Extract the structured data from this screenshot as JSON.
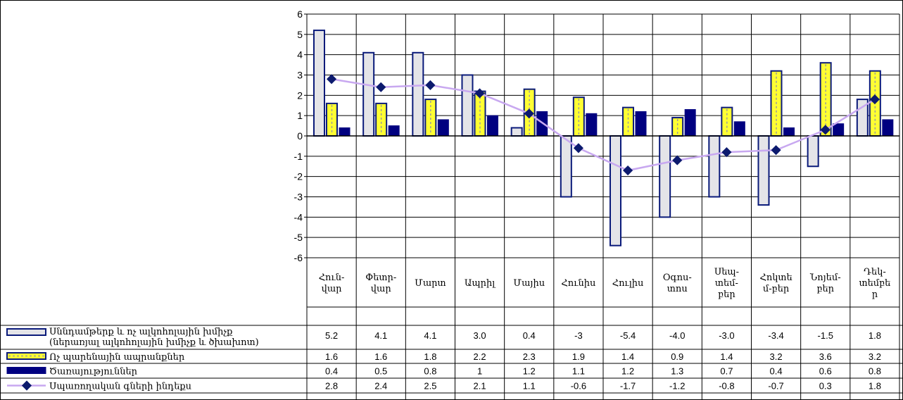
{
  "chart_data": {
    "type": "bar",
    "categories": [
      [
        "Հուն-",
        "վար"
      ],
      [
        "Փետր-",
        "վար"
      ],
      [
        "Մարտ"
      ],
      [
        "Ապրիլ"
      ],
      [
        "Մայիս"
      ],
      [
        "Հունիս"
      ],
      [
        "Հուլիս"
      ],
      [
        "Օգոս-",
        "տոս"
      ],
      [
        "Սեպ-",
        "տեմ-",
        "բեր"
      ],
      [
        "Հոկտե",
        "մ-բեր"
      ],
      [
        "Նոյեմ-",
        "բեր"
      ],
      [
        "Դեկ-",
        "տեմբե",
        "ր"
      ]
    ],
    "ylim": [
      -6,
      6
    ],
    "yticks": [
      "6",
      "5",
      "4",
      "3",
      "2",
      "1",
      "0",
      "-1",
      "-2",
      "-3",
      "-4",
      "-5",
      "-6"
    ],
    "grid": true,
    "series": [
      {
        "name": [
          "Սննդամթերք և ոչ ալկոհոլային խմիչք",
          "(ներառյալ ալկոհոլային խմիչք և ծխախոտ)"
        ],
        "type": "bar",
        "fill": "#e4e4e8",
        "stroke": "#0a1a7a",
        "values": [
          5.2,
          4.1,
          4.1,
          3.0,
          0.4,
          -3,
          -5.4,
          -4.0,
          -3.0,
          -3.4,
          -1.5,
          1.8
        ],
        "labels": [
          "5.2",
          "4.1",
          "4.1",
          "3.0",
          "0.4",
          "-3",
          "-5.4",
          "-4.0",
          "-3.0",
          "-3.4",
          "-1.5",
          "1.8"
        ]
      },
      {
        "name": [
          "Ոչ պարենային ապրանքներ"
        ],
        "type": "bar",
        "fill": "#ffff33",
        "stroke": "#0a1a7a",
        "values": [
          1.6,
          1.6,
          1.8,
          2.2,
          2.3,
          1.9,
          1.4,
          0.9,
          1.4,
          3.2,
          3.6,
          3.2
        ],
        "labels": [
          "1.6",
          "1.6",
          "1.8",
          "2.2",
          "2.3",
          "1.9",
          "1.4",
          "0.9",
          "1.4",
          "3.2",
          "3.6",
          "3.2"
        ]
      },
      {
        "name": [
          "Ծառայություններ"
        ],
        "type": "bar",
        "fill": "#000080",
        "stroke": "#000080",
        "values": [
          0.4,
          0.5,
          0.8,
          1,
          1.2,
          1.1,
          1.2,
          1.3,
          0.7,
          0.4,
          0.6,
          0.8
        ],
        "labels": [
          "0.4",
          "0.5",
          "0.8",
          "1",
          "1.2",
          "1.1",
          "1.2",
          "1.3",
          "0.7",
          "0.4",
          "0.6",
          "0.8"
        ]
      },
      {
        "name": [
          "Սպառողական գների ինդեքս"
        ],
        "type": "line",
        "line_color": "#c8a8f0",
        "marker_color": "#0c1a6e",
        "values": [
          2.8,
          2.4,
          2.5,
          2.1,
          1.1,
          -0.6,
          -1.7,
          -1.2,
          -0.8,
          -0.7,
          0.3,
          1.8
        ],
        "labels": [
          "2.8",
          "2.4",
          "2.5",
          "2.1",
          "1.1",
          "-0.6",
          "-1.7",
          "-1.2",
          "-0.8",
          "-0.7",
          "0.3",
          "1.8"
        ]
      }
    ]
  }
}
